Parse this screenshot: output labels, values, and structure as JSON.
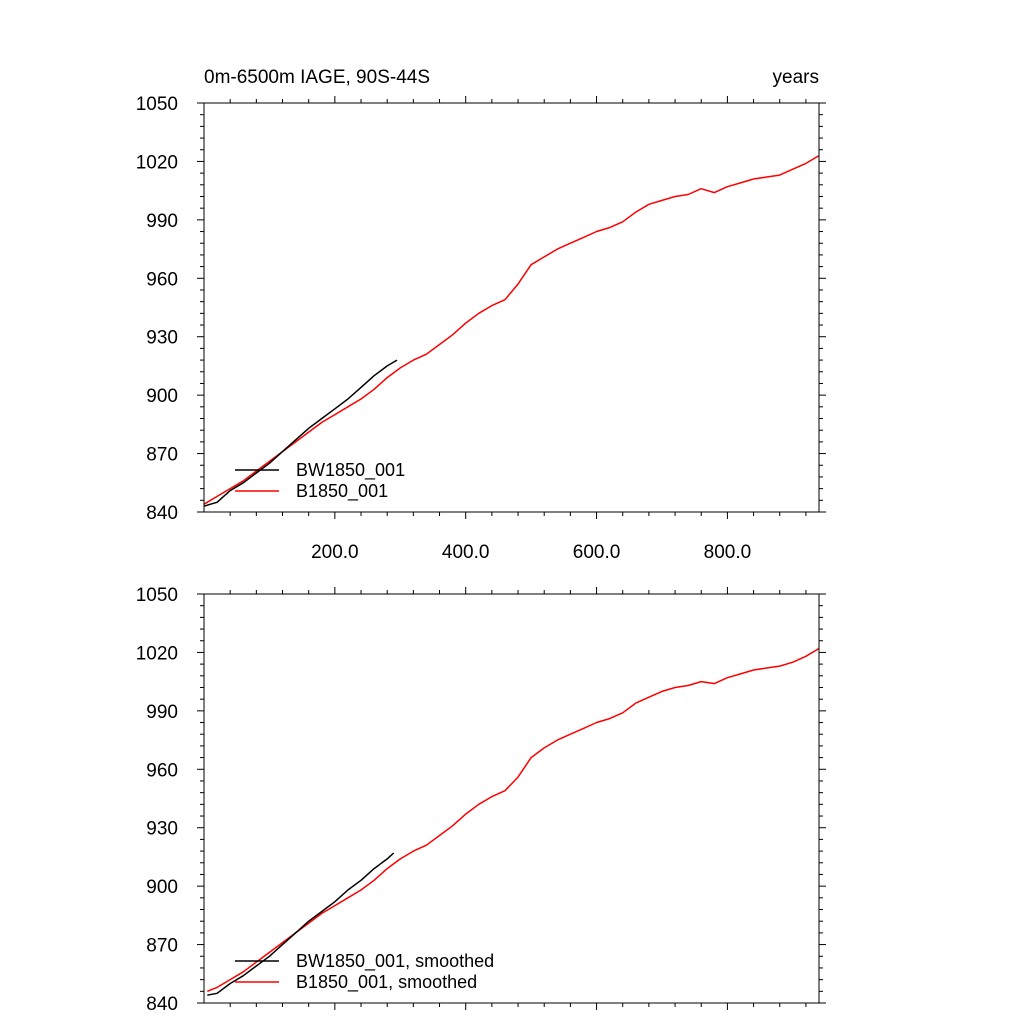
{
  "chart_data": [
    {
      "type": "line",
      "title_left": "0m-6500m IAGE, 90S-44S",
      "title_right": "years",
      "xlim": [
        0,
        940
      ],
      "ylim": [
        840,
        1050
      ],
      "x_ticks": [
        200,
        400,
        600,
        800
      ],
      "x_tick_labels": [
        "200.0",
        "400.0",
        "600.0",
        "800.0"
      ],
      "y_ticks": [
        840,
        870,
        900,
        930,
        960,
        990,
        1020,
        1050
      ],
      "y_tick_labels": [
        "840",
        "870",
        "900",
        "930",
        "960",
        "990",
        "1020",
        "1050"
      ],
      "grid": false,
      "legend_position": "bottom-left",
      "series": [
        {
          "name": "BW1850_001",
          "color": "#000000",
          "x": [
            0,
            10,
            20,
            30,
            40,
            50,
            60,
            80,
            100,
            120,
            140,
            160,
            180,
            200,
            220,
            240,
            260,
            280,
            295
          ],
          "y": [
            843,
            844,
            845,
            848,
            851,
            853,
            855,
            860,
            865,
            871,
            877,
            883,
            888,
            893,
            898,
            904,
            910,
            915,
            918
          ]
        },
        {
          "name": "B1850_001",
          "color": "#ff0000",
          "x": [
            0,
            20,
            40,
            60,
            80,
            100,
            120,
            140,
            160,
            180,
            200,
            220,
            240,
            260,
            280,
            300,
            320,
            340,
            360,
            380,
            400,
            420,
            440,
            460,
            480,
            500,
            520,
            540,
            560,
            580,
            600,
            620,
            640,
            660,
            680,
            700,
            720,
            740,
            760,
            780,
            800,
            820,
            840,
            860,
            880,
            900,
            920,
            940
          ],
          "y": [
            844,
            848,
            852,
            856,
            861,
            866,
            871,
            876,
            881,
            886,
            890,
            894,
            898,
            903,
            909,
            914,
            918,
            921,
            926,
            931,
            937,
            942,
            946,
            949,
            957,
            967,
            971,
            975,
            978,
            981,
            984,
            986,
            989,
            994,
            998,
            1000,
            1002,
            1003,
            1006,
            1004,
            1007,
            1009,
            1011,
            1012,
            1013,
            1016,
            1019,
            1023
          ]
        }
      ]
    },
    {
      "type": "line",
      "xlim": [
        0,
        940
      ],
      "ylim": [
        840,
        1050
      ],
      "x_ticks": [
        200,
        400,
        600,
        800
      ],
      "y_ticks": [
        840,
        870,
        900,
        930,
        960,
        990,
        1020,
        1050
      ],
      "y_tick_labels": [
        "840",
        "870",
        "900",
        "930",
        "960",
        "990",
        "1020",
        "1050"
      ],
      "grid": false,
      "legend_position": "bottom-left",
      "series": [
        {
          "name": "BW1850_001, smoothed",
          "color": "#000000",
          "x": [
            5,
            20,
            40,
            60,
            80,
            100,
            120,
            140,
            160,
            180,
            200,
            220,
            240,
            260,
            280,
            290
          ],
          "y": [
            844,
            845,
            850,
            854,
            859,
            864,
            870,
            876,
            882,
            887,
            892,
            898,
            903,
            909,
            914,
            917
          ]
        },
        {
          "name": "B1850_001, smoothed",
          "color": "#ff0000",
          "x": [
            5,
            20,
            40,
            60,
            80,
            100,
            120,
            140,
            160,
            180,
            200,
            220,
            240,
            260,
            280,
            300,
            320,
            340,
            360,
            380,
            400,
            420,
            440,
            460,
            480,
            500,
            520,
            540,
            560,
            580,
            600,
            620,
            640,
            660,
            680,
            700,
            720,
            740,
            760,
            780,
            800,
            820,
            840,
            860,
            880,
            900,
            920,
            940
          ],
          "y": [
            846,
            848,
            852,
            856,
            861,
            866,
            871,
            876,
            881,
            886,
            890,
            894,
            898,
            903,
            909,
            914,
            918,
            921,
            926,
            931,
            937,
            942,
            946,
            949,
            956,
            966,
            971,
            975,
            978,
            981,
            984,
            986,
            989,
            994,
            997,
            1000,
            1002,
            1003,
            1005,
            1004,
            1007,
            1009,
            1011,
            1012,
            1013,
            1015,
            1018,
            1022
          ]
        }
      ]
    }
  ]
}
